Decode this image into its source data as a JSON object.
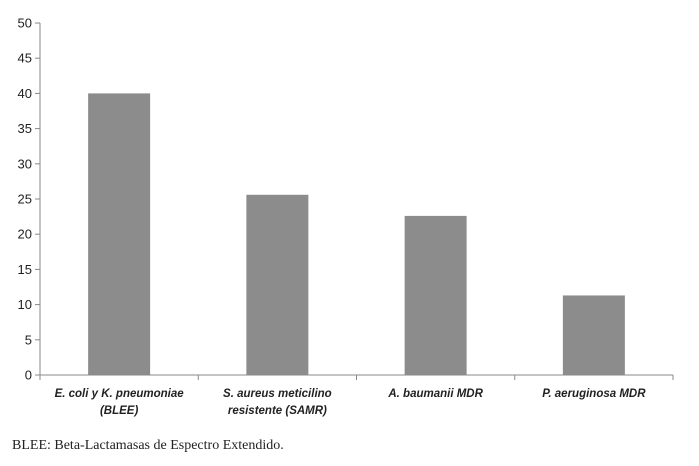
{
  "chart_data": {
    "type": "bar",
    "categories": [
      [
        "E. coli y K. pneumoniae",
        "(BLEE)"
      ],
      [
        "S. aureus meticilino",
        "resistente (SAMR)"
      ],
      [
        "A. baumanii MDR"
      ],
      [
        "P. aeruginosa MDR"
      ]
    ],
    "values": [
      40,
      25.6,
      22.6,
      11.3
    ],
    "ylim": [
      0,
      50
    ],
    "yticks": [
      0,
      5,
      10,
      15,
      20,
      25,
      30,
      35,
      40,
      45,
      50
    ],
    "bar_color": "#8c8c8c",
    "grid": false,
    "title": "",
    "xlabel": "",
    "ylabel": ""
  },
  "footnote": "BLEE: Beta-Lactamasas de Espectro Extendido."
}
